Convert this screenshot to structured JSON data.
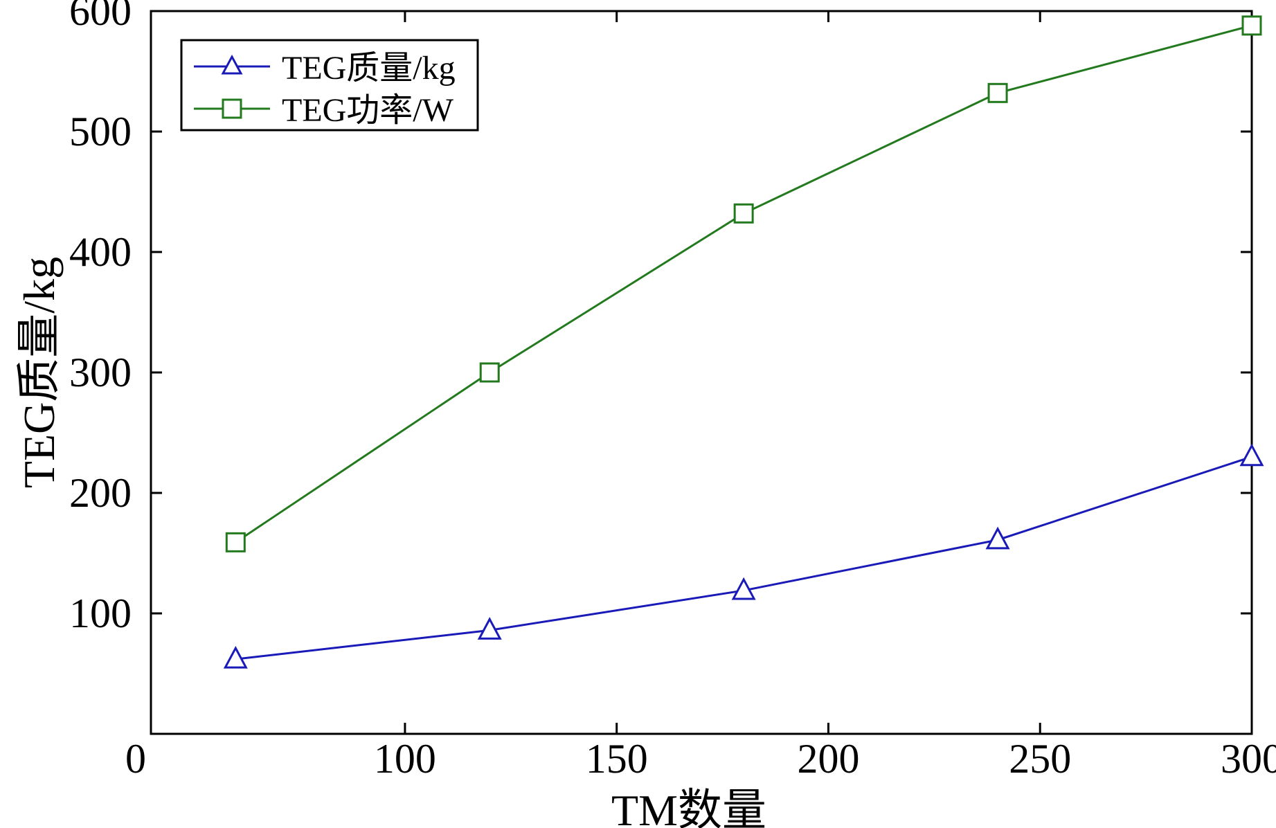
{
  "chart_data": {
    "type": "line",
    "xlabel": "TM数量",
    "ylabel": "TEG质量/kg",
    "x_ticks": [
      "0",
      "100",
      "150",
      "200",
      "250",
      "300"
    ],
    "y_ticks": [
      "100",
      "200",
      "300",
      "400",
      "500",
      "600"
    ],
    "xlim": [
      0,
      300
    ],
    "ylim": [
      0,
      600
    ],
    "legend_position": "top-left",
    "series": [
      {
        "name": "TEG质量/kg",
        "marker": "triangle",
        "color": "#1a1ab8",
        "x": [
          60,
          120,
          180,
          240,
          300
        ],
        "y": [
          62,
          86,
          119,
          161,
          230
        ]
      },
      {
        "name": "TEG功率/W",
        "marker": "square",
        "color": "#237a1e",
        "x": [
          60,
          120,
          180,
          240,
          300
        ],
        "y": [
          159,
          300,
          432,
          532,
          588
        ]
      }
    ]
  }
}
